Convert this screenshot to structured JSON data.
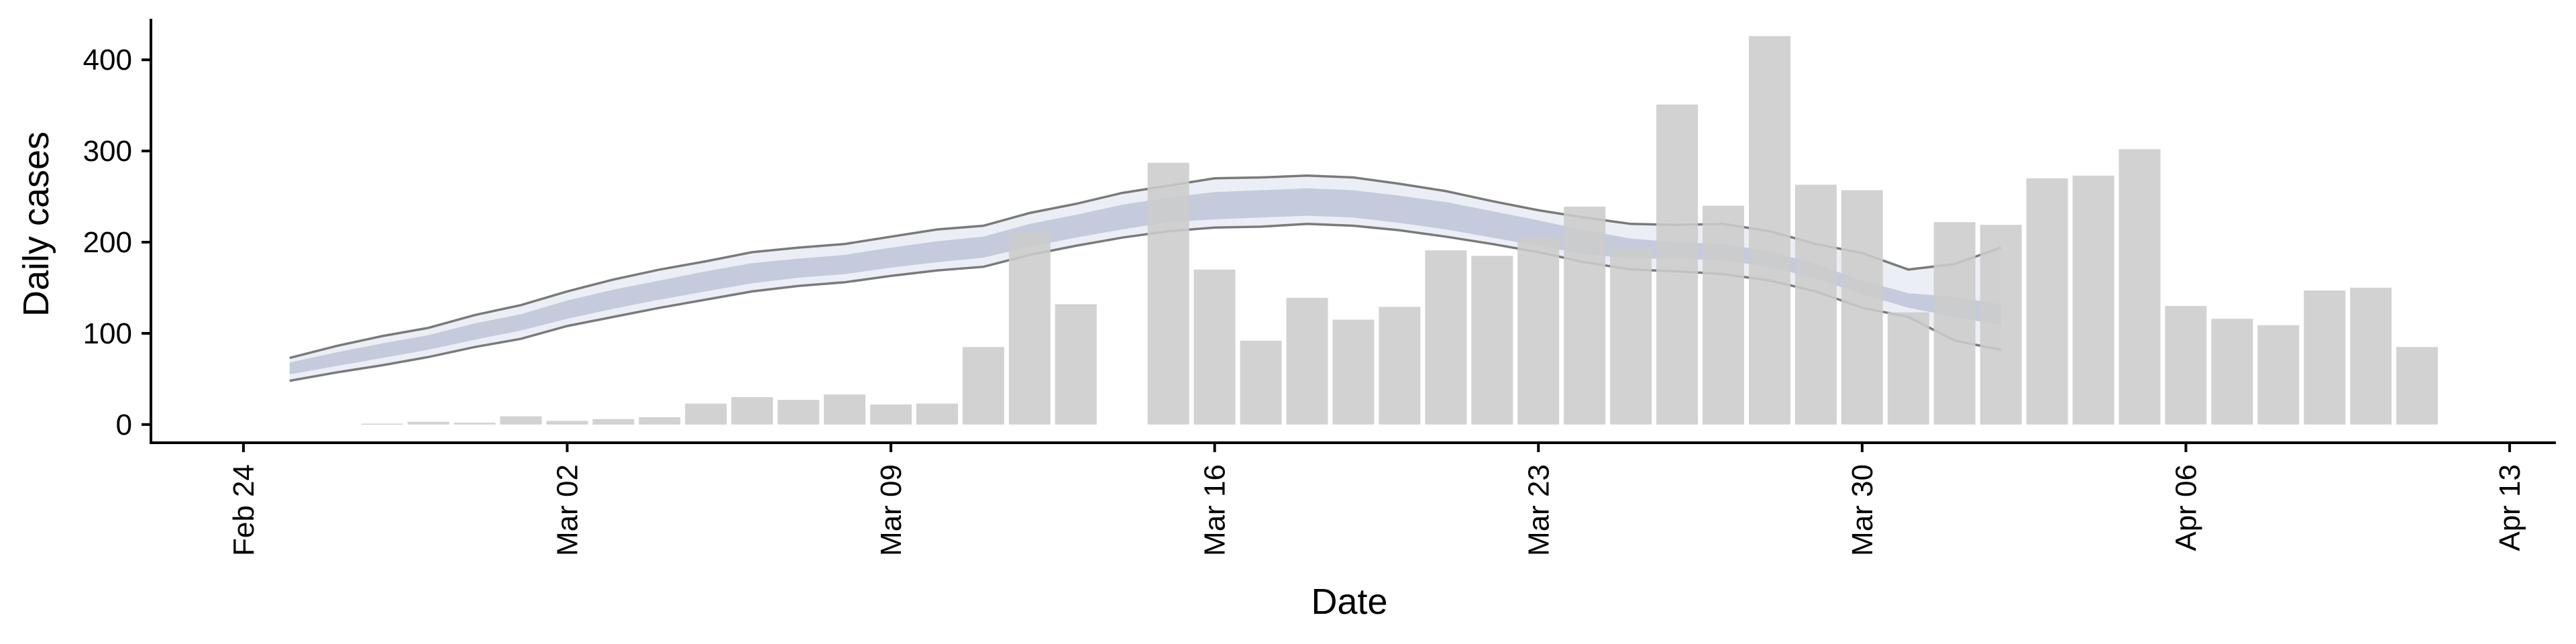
{
  "chart_data": {
    "type": "bar",
    "xlabel": "Date",
    "ylabel": "Daily cases",
    "x_tick_labels": [
      "Feb 24",
      "Mar 02",
      "Mar 09",
      "Mar 16",
      "Mar 23",
      "Mar 30",
      "Apr 06",
      "Apr 13"
    ],
    "x_ticks": [
      "2020-02-24",
      "2020-03-02",
      "2020-03-09",
      "2020-03-16",
      "2020-03-23",
      "2020-03-30",
      "2020-04-06",
      "2020-04-13"
    ],
    "xlim": [
      "2020-02-22",
      "2020-04-14"
    ],
    "y_ticks": [
      0,
      100,
      200,
      300,
      400
    ],
    "ylim": [
      -20,
      445
    ],
    "grid": false,
    "legend": "none",
    "bars": {
      "color": "#cccccc",
      "dates": [
        "2020-02-27",
        "2020-02-28",
        "2020-02-29",
        "2020-03-01",
        "2020-03-02",
        "2020-03-03",
        "2020-03-04",
        "2020-03-05",
        "2020-03-06",
        "2020-03-07",
        "2020-03-08",
        "2020-03-09",
        "2020-03-10",
        "2020-03-11",
        "2020-03-12",
        "2020-03-13",
        "2020-03-14",
        "2020-03-15",
        "2020-03-16",
        "2020-03-17",
        "2020-03-18",
        "2020-03-19",
        "2020-03-20",
        "2020-03-21",
        "2020-03-22",
        "2020-03-23",
        "2020-03-24",
        "2020-03-25",
        "2020-03-26",
        "2020-03-27",
        "2020-03-28",
        "2020-03-29",
        "2020-03-30",
        "2020-03-31",
        "2020-04-01",
        "2020-04-02",
        "2020-04-03",
        "2020-04-04",
        "2020-04-05",
        "2020-04-06",
        "2020-04-07",
        "2020-04-08",
        "2020-04-09",
        "2020-04-10",
        "2020-04-11"
      ],
      "values": [
        1,
        3,
        2,
        9,
        4,
        6,
        8,
        23,
        30,
        27,
        33,
        22,
        23,
        85,
        212,
        132,
        0,
        287,
        170,
        92,
        139,
        115,
        129,
        191,
        185,
        206,
        239,
        195,
        351,
        240,
        426,
        263,
        257,
        123,
        222,
        219,
        270,
        273,
        302,
        130,
        116,
        109,
        147,
        150,
        85
      ]
    },
    "series": [
      {
        "role": "outer-band",
        "color": "#eceef5",
        "border_color": "#7a7a7a",
        "dates": [
          "2020-02-25",
          "2020-02-26",
          "2020-02-27",
          "2020-02-28",
          "2020-02-29",
          "2020-03-01",
          "2020-03-02",
          "2020-03-03",
          "2020-03-04",
          "2020-03-05",
          "2020-03-06",
          "2020-03-07",
          "2020-03-08",
          "2020-03-09",
          "2020-03-10",
          "2020-03-11",
          "2020-03-12",
          "2020-03-13",
          "2020-03-14",
          "2020-03-15",
          "2020-03-16",
          "2020-03-17",
          "2020-03-18",
          "2020-03-19",
          "2020-03-20",
          "2020-03-21",
          "2020-03-22",
          "2020-03-23",
          "2020-03-24",
          "2020-03-25",
          "2020-03-26",
          "2020-03-27",
          "2020-03-28",
          "2020-03-29",
          "2020-03-30",
          "2020-03-31",
          "2020-04-01",
          "2020-04-02"
        ],
        "lower": [
          48,
          57,
          65,
          74,
          85,
          94,
          108,
          118,
          128,
          137,
          146,
          152,
          156,
          163,
          169,
          173,
          186,
          196,
          205,
          212,
          216,
          217,
          220,
          218,
          213,
          206,
          198,
          189,
          178,
          170,
          168,
          165,
          158,
          146,
          128,
          118,
          92,
          82
        ],
        "upper": [
          73,
          86,
          97,
          106,
          120,
          131,
          146,
          159,
          170,
          179,
          189,
          194,
          198,
          206,
          214,
          218,
          232,
          242,
          254,
          262,
          270,
          271,
          273,
          271,
          264,
          256,
          245,
          235,
          227,
          220,
          219,
          220,
          212,
          198,
          188,
          170,
          176,
          194
        ]
      },
      {
        "role": "inner-band",
        "color": "#c5cbdd",
        "dates": [
          "2020-02-25",
          "2020-02-26",
          "2020-02-27",
          "2020-02-28",
          "2020-02-29",
          "2020-03-01",
          "2020-03-02",
          "2020-03-03",
          "2020-03-04",
          "2020-03-05",
          "2020-03-06",
          "2020-03-07",
          "2020-03-08",
          "2020-03-09",
          "2020-03-10",
          "2020-03-11",
          "2020-03-12",
          "2020-03-13",
          "2020-03-14",
          "2020-03-15",
          "2020-03-16",
          "2020-03-17",
          "2020-03-18",
          "2020-03-19",
          "2020-03-20",
          "2020-03-21",
          "2020-03-22",
          "2020-03-23",
          "2020-03-24",
          "2020-03-25",
          "2020-03-26",
          "2020-03-27",
          "2020-03-28",
          "2020-03-29",
          "2020-03-30",
          "2020-03-31",
          "2020-04-01",
          "2020-04-02"
        ],
        "lower": [
          55,
          64,
          73,
          82,
          93,
          103,
          116,
          127,
          137,
          146,
          155,
          161,
          165,
          172,
          178,
          183,
          195,
          205,
          214,
          222,
          225,
          227,
          229,
          227,
          221,
          214,
          205,
          196,
          187,
          182,
          182,
          180,
          173,
          160,
          143,
          128,
          118,
          109
        ],
        "upper": [
          68,
          79,
          89,
          98,
          111,
          121,
          136,
          148,
          158,
          168,
          177,
          182,
          186,
          194,
          201,
          206,
          220,
          230,
          241,
          249,
          255,
          257,
          259,
          257,
          251,
          244,
          234,
          224,
          213,
          204,
          200,
          198,
          190,
          176,
          158,
          144,
          140,
          132
        ]
      }
    ]
  }
}
